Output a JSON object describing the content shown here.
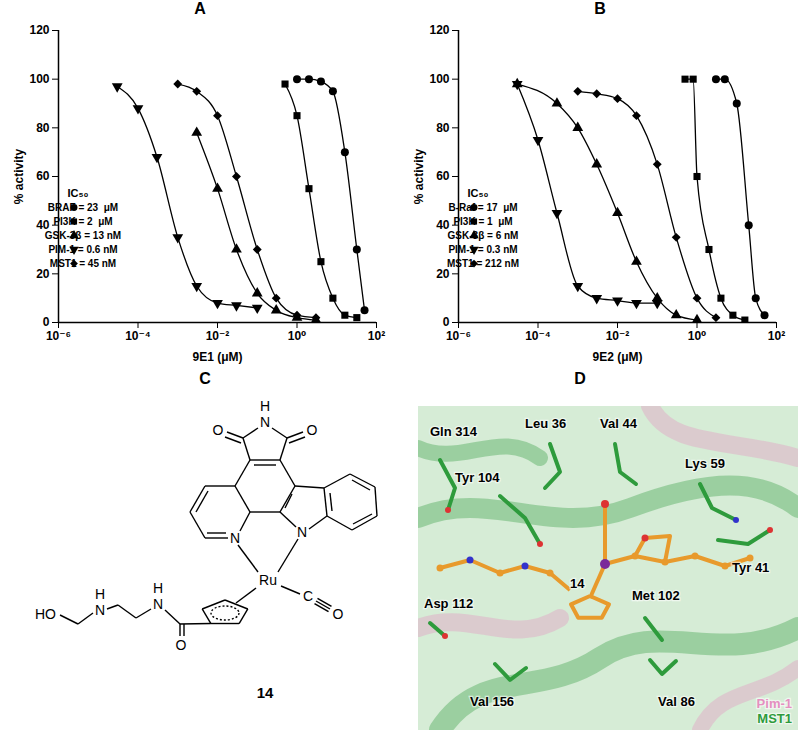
{
  "chart_data": [
    {
      "panel": "A",
      "type": "line",
      "x_label": "9E1 (μM)",
      "y_label": "% activity",
      "log": "x",
      "xlim": [
        1e-06,
        100
      ],
      "xticks": [
        {
          "value": 1e-06,
          "label": "10⁻⁶"
        },
        {
          "value": 0.0001,
          "label": "10⁻⁴"
        },
        {
          "value": 0.01,
          "label": "10⁻²"
        },
        {
          "value": 1,
          "label": "10⁰"
        },
        {
          "value": 100,
          "label": "10²"
        }
      ],
      "ylim": [
        0,
        120
      ],
      "yticks": [
        0,
        20,
        40,
        60,
        80,
        100,
        120
      ],
      "grid": false,
      "legend": "left",
      "legend_title": "IC₅₀",
      "series": [
        {
          "name": "BRAF = 23  μM",
          "color": "#000000",
          "marker": "circle",
          "x": [
            1,
            2,
            4,
            8,
            16,
            32,
            50
          ],
          "values": [
            100,
            100,
            99,
            95,
            70,
            30,
            5
          ]
        },
        {
          "name": "PI3K = 2  μM",
          "color": "#000000",
          "marker": "square",
          "x": [
            0.5,
            1,
            2,
            4,
            8,
            16,
            32
          ],
          "values": [
            98,
            85,
            55,
            25,
            10,
            3,
            2
          ]
        },
        {
          "name": "GSK-3β = 13 nM",
          "color": "#000000",
          "marker": "triangle",
          "x": [
            0.003,
            0.01,
            0.03,
            0.1,
            0.3,
            1,
            3
          ],
          "values": [
            78,
            55,
            30,
            12,
            5,
            2,
            1
          ]
        },
        {
          "name": "PIM-1 = 0.6 nM",
          "color": "#000000",
          "marker": "triangle-down",
          "x": [
            3e-05,
            0.0001,
            0.0003,
            0.001,
            0.003,
            0.01,
            0.03,
            0.1
          ],
          "values": [
            97,
            88,
            68,
            35,
            15,
            8,
            7,
            6
          ]
        },
        {
          "name": "MST1 = 45 nM",
          "color": "#000000",
          "marker": "diamond",
          "x": [
            0.001,
            0.003,
            0.01,
            0.03,
            0.1,
            0.3,
            1,
            3
          ],
          "values": [
            98,
            95,
            85,
            60,
            30,
            10,
            3,
            2
          ]
        }
      ]
    },
    {
      "panel": "B",
      "type": "line",
      "x_label": "9E2 (μM)",
      "y_label": "% activity",
      "log": "x",
      "xlim": [
        1e-06,
        100
      ],
      "xticks": [
        {
          "value": 1e-06,
          "label": "10⁻⁶"
        },
        {
          "value": 0.0001,
          "label": "10⁻⁴"
        },
        {
          "value": 0.01,
          "label": "10⁻²"
        },
        {
          "value": 1,
          "label": "10⁰"
        },
        {
          "value": 100,
          "label": "10²"
        }
      ],
      "ylim": [
        0,
        120
      ],
      "yticks": [
        0,
        20,
        40,
        60,
        80,
        100,
        120
      ],
      "grid": false,
      "legend": "left",
      "legend_title": "IC₅₀",
      "series": [
        {
          "name": "B-Raf = 17  μM",
          "color": "#000000",
          "marker": "circle",
          "x": [
            3,
            5,
            10,
            20,
            30,
            50
          ],
          "values": [
            100,
            100,
            90,
            40,
            10,
            3
          ]
        },
        {
          "name": "PI3K = 1  μM",
          "color": "#000000",
          "marker": "square",
          "x": [
            0.5,
            0.8,
            1,
            2,
            4,
            8,
            16
          ],
          "values": [
            100,
            100,
            60,
            30,
            10,
            3,
            1
          ]
        },
        {
          "name": "GSK-3β = 6 nM",
          "color": "#000000",
          "marker": "triangle",
          "x": [
            3e-05,
            0.0003,
            0.001,
            0.003,
            0.01,
            0.03,
            0.1,
            0.3,
            1
          ],
          "values": [
            98,
            90,
            80,
            65,
            45,
            25,
            10,
            3,
            1
          ]
        },
        {
          "name": "PIM-1 = 0.3 nM",
          "color": "#000000",
          "marker": "triangle-down",
          "x": [
            3e-05,
            0.0001,
            0.0003,
            0.001,
            0.003,
            0.01,
            0.03,
            0.1
          ],
          "values": [
            98,
            75,
            45,
            15,
            10,
            9,
            8,
            8
          ]
        },
        {
          "name": "MST1 = 212 nM",
          "color": "#000000",
          "marker": "diamond",
          "x": [
            0.001,
            0.003,
            0.01,
            0.03,
            0.1,
            0.3,
            1,
            3
          ],
          "values": [
            95,
            94,
            92,
            85,
            65,
            35,
            10,
            2
          ]
        }
      ]
    }
  ],
  "structure": {
    "panel": "C",
    "compound": "14",
    "atoms": [
      "H",
      "N",
      "O",
      "O",
      "N",
      "N",
      "Ru",
      "C",
      "O",
      "O",
      "N",
      "H",
      "N",
      "H",
      "HO"
    ]
  },
  "docking": {
    "panel": "D",
    "ligand": "14",
    "residues": [
      "Gln 314",
      "Leu 36",
      "Val 44",
      "Lys 59",
      "Tyr 104",
      "Asp 112",
      "Met 102",
      "Tyr 41",
      "Val 156",
      "Val 86"
    ],
    "proteins": [
      {
        "name": "Pim-1",
        "color": "#e58fc0"
      },
      {
        "name": "MST1",
        "color": "#2e9b3c"
      }
    ]
  }
}
